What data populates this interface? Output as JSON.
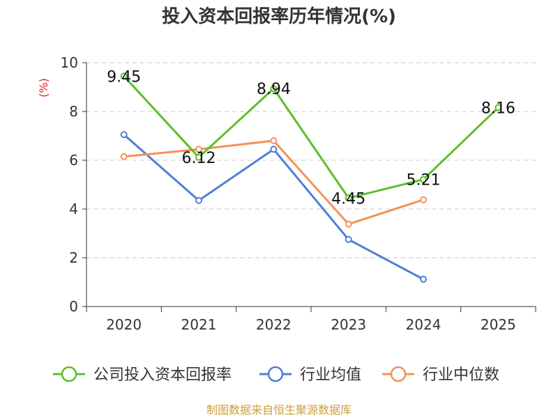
{
  "chart_data": {
    "type": "line",
    "title": "投入资本回报率历年情况(%)",
    "ylabel": "(%)",
    "xlabel": "",
    "ylim": [
      0,
      10
    ],
    "yticks": [
      0,
      2,
      4,
      6,
      8,
      10
    ],
    "categories": [
      "2020",
      "2021",
      "2022",
      "2023",
      "2024",
      "2025"
    ],
    "grid": true,
    "legend_position": "bottom",
    "series": [
      {
        "name": "公司投入资本回报率",
        "color": "#5cbf2a",
        "values": [
          9.45,
          6.12,
          8.94,
          4.45,
          5.21,
          8.16
        ],
        "labels": [
          "9.45",
          "6.12",
          "8.94",
          "4.45",
          "5.21",
          "8.16"
        ]
      },
      {
        "name": "行业均值",
        "color": "#4f7fd6",
        "values": [
          7.05,
          4.35,
          6.45,
          2.75,
          1.12,
          null
        ]
      },
      {
        "name": "行业中位数",
        "color": "#f4915a",
        "values": [
          6.15,
          6.45,
          6.8,
          3.38,
          4.38,
          null
        ]
      }
    ],
    "source": "制图数据来自恒生聚源数据库"
  }
}
